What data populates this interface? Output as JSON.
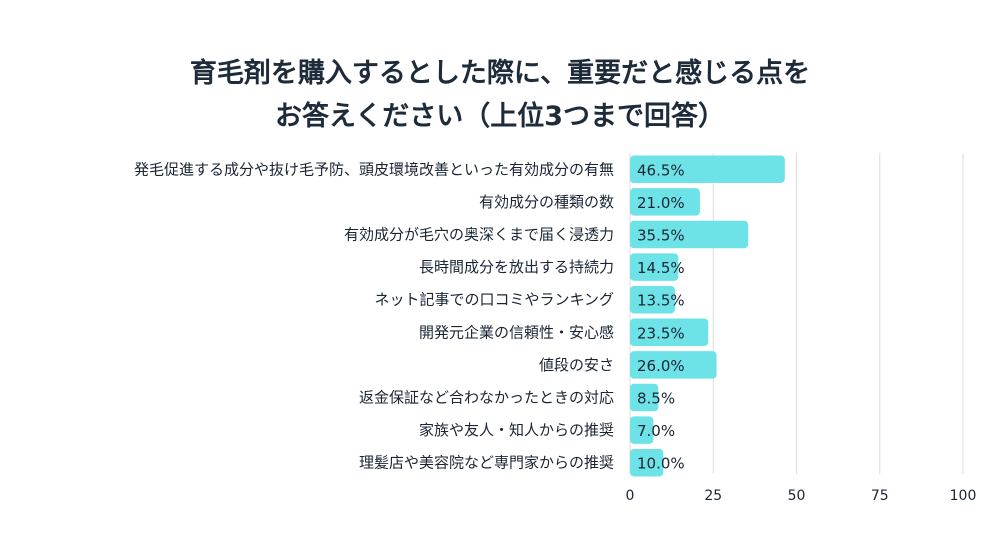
{
  "title_lines": [
    "育毛剤を購入するとした際に、重要だと感じる点を",
    "お答えください（上位3つまで回答）"
  ],
  "chart_data": {
    "type": "bar",
    "orientation": "horizontal",
    "title": "育毛剤を購入するとした際に、重要だと感じる点をお答えください（上位3つまで回答）",
    "categories": [
      "発毛促進する成分や抜け毛予防、頭皮環境改善といった有効成分の有無",
      "有効成分の種類の数",
      "有効成分が毛穴の奥深くまで届く浸透力",
      "長時間成分を放出する持続力",
      "ネット記事での口コミやランキング",
      "開発元企業の信頼性・安心感",
      "値段の安さ",
      "返金保証など合わなかったときの対応",
      "家族や友人・知人からの推奨",
      "理髪店や美容院など専門家からの推奨"
    ],
    "values": [
      46.5,
      21.0,
      35.5,
      14.5,
      13.5,
      23.5,
      26.0,
      8.5,
      7.0,
      10.0
    ],
    "value_labels": [
      "46.5%",
      "21.0%",
      "35.5%",
      "14.5%",
      "13.5%",
      "23.5%",
      "26.0%",
      "8.5%",
      "7.0%",
      "10.0%"
    ],
    "xlim": [
      0,
      100
    ],
    "xticks": [
      0,
      25,
      50,
      75,
      100
    ],
    "bar_color": "#6de3e8",
    "grid_color": "#dddddd",
    "grid": true
  }
}
